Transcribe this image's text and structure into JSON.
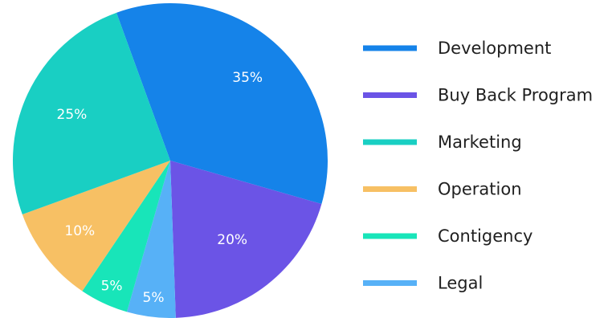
{
  "chart_data": {
    "type": "pie",
    "slices": [
      {
        "label": "Development",
        "value": 35,
        "value_label": "35%",
        "color": "#1583e9"
      },
      {
        "label": "Buy Back Program",
        "value": 20,
        "value_label": "20%",
        "color": "#6b54e6"
      },
      {
        "label": "Legal",
        "value": 5,
        "value_label": "5%",
        "color": "#57b1f7"
      },
      {
        "label": "Contigency",
        "value": 5,
        "value_label": "5%",
        "color": "#18e5b9"
      },
      {
        "label": "Operation",
        "value": 10,
        "value_label": "10%",
        "color": "#f7c064"
      },
      {
        "label": "Marketing",
        "value": 25,
        "value_label": "25%",
        "color": "#19cfc3"
      }
    ],
    "legend": {
      "placement": "right",
      "items": [
        {
          "label": "Development",
          "color": "#1583e9"
        },
        {
          "label": "Buy Back Program",
          "color": "#6b54e6"
        },
        {
          "label": "Marketing",
          "color": "#19cfc3"
        },
        {
          "label": "Operation",
          "color": "#f7c064"
        },
        {
          "label": "Contigency",
          "color": "#18e5b9"
        },
        {
          "label": "Legal",
          "color": "#57b1f7"
        }
      ]
    }
  }
}
